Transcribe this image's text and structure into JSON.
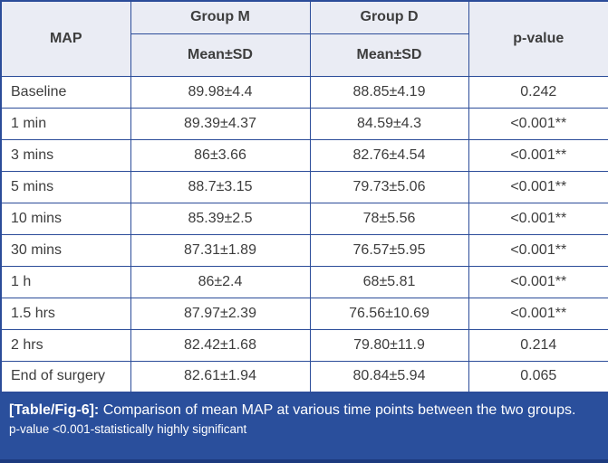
{
  "table": {
    "header": {
      "col1": "MAP",
      "group_m": "Group M",
      "group_d": "Group D",
      "mean_sd_m": "Mean±SD",
      "mean_sd_d": "Mean±SD",
      "p_value": "p-value"
    },
    "rows": [
      {
        "label": "Baseline",
        "group_m": "89.98±4.4",
        "group_d": "88.85±4.19",
        "p": "0.242"
      },
      {
        "label": "1 min",
        "group_m": "89.39±4.37",
        "group_d": "84.59±4.3",
        "p": "<0.001**"
      },
      {
        "label": "3 mins",
        "group_m": "86±3.66",
        "group_d": "82.76±4.54",
        "p": "<0.001**"
      },
      {
        "label": "5 mins",
        "group_m": "88.7±3.15",
        "group_d": "79.73±5.06",
        "p": "<0.001**"
      },
      {
        "label": "10 mins",
        "group_m": "85.39±2.5",
        "group_d": "78±5.56",
        "p": "<0.001**"
      },
      {
        "label": "30 mins",
        "group_m": "87.31±1.89",
        "group_d": "76.57±5.95",
        "p": "<0.001**"
      },
      {
        "label": "1 h",
        "group_m": "86±2.4",
        "group_d": "68±5.81",
        "p": "<0.001**"
      },
      {
        "label": "1.5 hrs",
        "group_m": "87.97±2.39",
        "group_d": "76.56±10.69",
        "p": "<0.001**"
      },
      {
        "label": "2 hrs",
        "group_m": "82.42±1.68",
        "group_d": "79.80±11.9",
        "p": "0.214"
      },
      {
        "label": "End of surgery",
        "group_m": "82.61±1.94",
        "group_d": "80.84±5.94",
        "p": "0.065"
      }
    ]
  },
  "caption": {
    "tag": "[Table/Fig-6]:",
    "text": " Comparison of mean MAP at various time points between the two groups.",
    "note": "p-value <0.001-statistically highly significant"
  },
  "chart_data": {
    "type": "table",
    "title": "[Table/Fig-6]: Comparison of mean MAP at various time points between the two groups.",
    "columns": [
      "MAP",
      "Group M Mean±SD",
      "Group D Mean±SD",
      "p-value"
    ],
    "rows": [
      [
        "Baseline",
        "89.98±4.4",
        "88.85±4.19",
        "0.242"
      ],
      [
        "1 min",
        "89.39±4.37",
        "84.59±4.3",
        "<0.001**"
      ],
      [
        "3 mins",
        "86±3.66",
        "82.76±4.54",
        "<0.001**"
      ],
      [
        "5 mins",
        "88.7±3.15",
        "79.73±5.06",
        "<0.001**"
      ],
      [
        "10 mins",
        "85.39±2.5",
        "78±5.56",
        "<0.001**"
      ],
      [
        "30 mins",
        "87.31±1.89",
        "76.57±5.95",
        "<0.001**"
      ],
      [
        "1 h",
        "86±2.4",
        "68±5.81",
        "<0.001**"
      ],
      [
        "1.5 hrs",
        "87.97±2.39",
        "76.56±10.69",
        "<0.001**"
      ],
      [
        "2 hrs",
        "82.42±1.68",
        "79.80±11.9",
        "0.214"
      ],
      [
        "End of surgery",
        "82.61±1.94",
        "80.84±5.94",
        "0.065"
      ]
    ],
    "footnote": "p-value <0.001-statistically highly significant"
  },
  "colors": {
    "border": "#2b4c99",
    "header_bg": "#eaecf4",
    "header_text": "#2b4c99",
    "body_text": "#3d3d3d",
    "caption_bg": "#2a4f9c",
    "caption_text": "#ffffff"
  }
}
